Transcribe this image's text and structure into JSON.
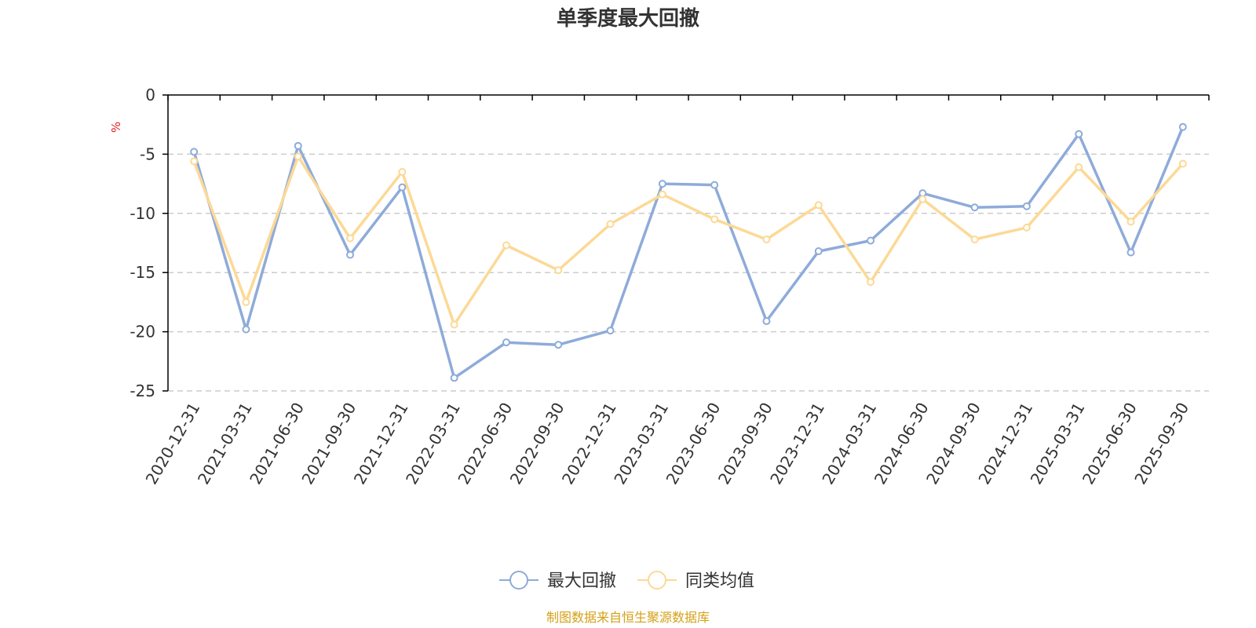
{
  "chart_data": {
    "type": "line",
    "title": "单季度最大回撤",
    "ylabel": "%",
    "ylim": [
      -25,
      0
    ],
    "yticks": [
      0,
      -5,
      -10,
      -15,
      -20,
      -25
    ],
    "grid": true,
    "legend_position": "bottom",
    "categories": [
      "2020-12-31",
      "2021-03-31",
      "2021-06-30",
      "2021-09-30",
      "2021-12-31",
      "2022-03-31",
      "2022-06-30",
      "2022-09-30",
      "2022-12-31",
      "2023-03-31",
      "2023-06-30",
      "2023-09-30",
      "2023-12-31",
      "2024-03-31",
      "2024-06-30",
      "2024-09-30",
      "2024-12-31",
      "2025-03-31",
      "2025-06-30",
      "2025-09-30"
    ],
    "series": [
      {
        "name": "最大回撤",
        "color": "#8eabd9",
        "values": [
          -4.8,
          -19.8,
          -4.3,
          -13.5,
          -7.8,
          -23.9,
          -20.9,
          -21.1,
          -19.9,
          -7.5,
          -7.6,
          -19.1,
          -13.2,
          -12.3,
          -8.3,
          -9.5,
          -9.4,
          -3.3,
          -13.3,
          -2.7
        ]
      },
      {
        "name": "同类均值",
        "color": "#fcd996",
        "values": [
          -5.6,
          -17.5,
          -5.2,
          -12.1,
          -6.5,
          -19.4,
          -12.7,
          -14.8,
          -10.9,
          -8.4,
          -10.5,
          -12.2,
          -9.3,
          -15.8,
          -8.8,
          -12.2,
          -11.2,
          -6.1,
          -10.7,
          -5.8
        ]
      }
    ]
  },
  "colors": {
    "unit": "#e02020",
    "source": "#d4a017",
    "grid": "#cccccc",
    "axis": "#000000"
  },
  "source_text": "制图数据来自恒生聚源数据库"
}
